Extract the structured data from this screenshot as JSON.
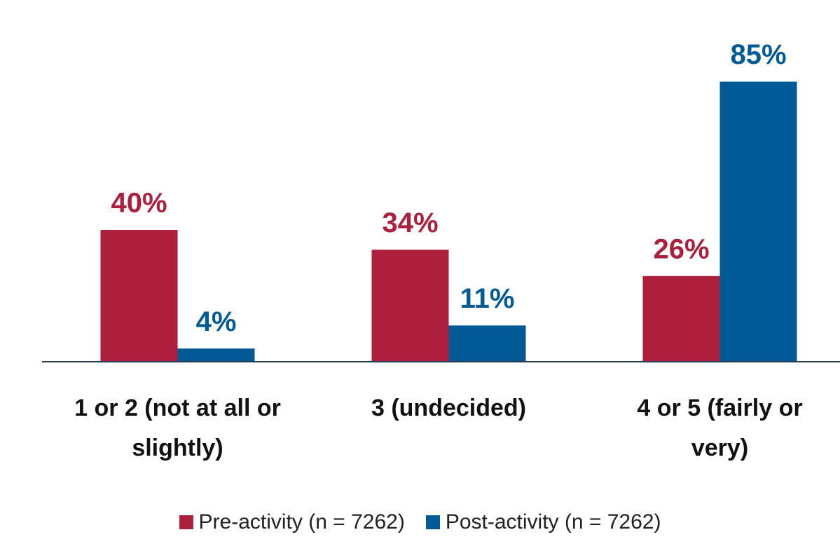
{
  "chart_data": {
    "type": "bar",
    "categories": [
      "1 or 2 (not at all or slightly)",
      "3 (undecided)",
      "4 or 5 (fairly or very)"
    ],
    "series": [
      {
        "name": "Pre-activity (n = 7262)",
        "color": "#ae1f3d",
        "values": [
          40,
          34,
          26
        ],
        "value_labels": [
          "40%",
          "34%",
          "26%"
        ]
      },
      {
        "name": "Post-activity (n = 7262)",
        "color": "#015a96",
        "values": [
          4,
          11,
          85
        ],
        "value_labels": [
          "4%",
          "11%",
          "85%"
        ]
      }
    ],
    "ylim": [
      0,
      100
    ]
  }
}
